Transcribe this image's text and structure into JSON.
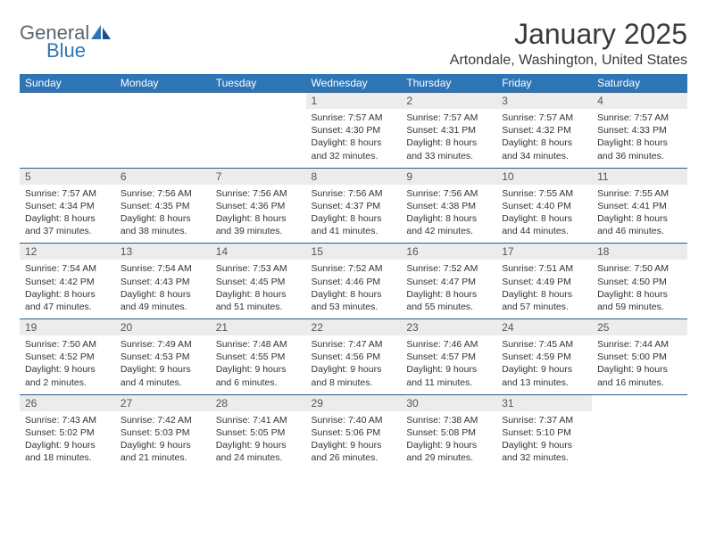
{
  "brand": {
    "name_top": "General",
    "name_bottom": "Blue"
  },
  "title": "January 2025",
  "location": "Artondale, Washington, United States",
  "colors": {
    "header_bg": "#2e75b6",
    "header_fg": "#ffffff",
    "daynum_bg": "#ececec",
    "border": "#2e5b8a",
    "text": "#333333",
    "logo_gray": "#5a6570",
    "logo_blue": "#2e75b6"
  },
  "fonts": {
    "title_size": 32,
    "location_size": 16,
    "dayhead_size": 12,
    "cell_size": 10.5
  },
  "day_headers": [
    "Sunday",
    "Monday",
    "Tuesday",
    "Wednesday",
    "Thursday",
    "Friday",
    "Saturday"
  ],
  "weeks": [
    [
      null,
      null,
      null,
      {
        "n": "1",
        "sr": "7:57 AM",
        "ss": "4:30 PM",
        "dh": "8",
        "dm": "32"
      },
      {
        "n": "2",
        "sr": "7:57 AM",
        "ss": "4:31 PM",
        "dh": "8",
        "dm": "33"
      },
      {
        "n": "3",
        "sr": "7:57 AM",
        "ss": "4:32 PM",
        "dh": "8",
        "dm": "34"
      },
      {
        "n": "4",
        "sr": "7:57 AM",
        "ss": "4:33 PM",
        "dh": "8",
        "dm": "36"
      }
    ],
    [
      {
        "n": "5",
        "sr": "7:57 AM",
        "ss": "4:34 PM",
        "dh": "8",
        "dm": "37"
      },
      {
        "n": "6",
        "sr": "7:56 AM",
        "ss": "4:35 PM",
        "dh": "8",
        "dm": "38"
      },
      {
        "n": "7",
        "sr": "7:56 AM",
        "ss": "4:36 PM",
        "dh": "8",
        "dm": "39"
      },
      {
        "n": "8",
        "sr": "7:56 AM",
        "ss": "4:37 PM",
        "dh": "8",
        "dm": "41"
      },
      {
        "n": "9",
        "sr": "7:56 AM",
        "ss": "4:38 PM",
        "dh": "8",
        "dm": "42"
      },
      {
        "n": "10",
        "sr": "7:55 AM",
        "ss": "4:40 PM",
        "dh": "8",
        "dm": "44"
      },
      {
        "n": "11",
        "sr": "7:55 AM",
        "ss": "4:41 PM",
        "dh": "8",
        "dm": "46"
      }
    ],
    [
      {
        "n": "12",
        "sr": "7:54 AM",
        "ss": "4:42 PM",
        "dh": "8",
        "dm": "47"
      },
      {
        "n": "13",
        "sr": "7:54 AM",
        "ss": "4:43 PM",
        "dh": "8",
        "dm": "49"
      },
      {
        "n": "14",
        "sr": "7:53 AM",
        "ss": "4:45 PM",
        "dh": "8",
        "dm": "51"
      },
      {
        "n": "15",
        "sr": "7:52 AM",
        "ss": "4:46 PM",
        "dh": "8",
        "dm": "53"
      },
      {
        "n": "16",
        "sr": "7:52 AM",
        "ss": "4:47 PM",
        "dh": "8",
        "dm": "55"
      },
      {
        "n": "17",
        "sr": "7:51 AM",
        "ss": "4:49 PM",
        "dh": "8",
        "dm": "57"
      },
      {
        "n": "18",
        "sr": "7:50 AM",
        "ss": "4:50 PM",
        "dh": "8",
        "dm": "59"
      }
    ],
    [
      {
        "n": "19",
        "sr": "7:50 AM",
        "ss": "4:52 PM",
        "dh": "9",
        "dm": "2"
      },
      {
        "n": "20",
        "sr": "7:49 AM",
        "ss": "4:53 PM",
        "dh": "9",
        "dm": "4"
      },
      {
        "n": "21",
        "sr": "7:48 AM",
        "ss": "4:55 PM",
        "dh": "9",
        "dm": "6"
      },
      {
        "n": "22",
        "sr": "7:47 AM",
        "ss": "4:56 PM",
        "dh": "9",
        "dm": "8"
      },
      {
        "n": "23",
        "sr": "7:46 AM",
        "ss": "4:57 PM",
        "dh": "9",
        "dm": "11"
      },
      {
        "n": "24",
        "sr": "7:45 AM",
        "ss": "4:59 PM",
        "dh": "9",
        "dm": "13"
      },
      {
        "n": "25",
        "sr": "7:44 AM",
        "ss": "5:00 PM",
        "dh": "9",
        "dm": "16"
      }
    ],
    [
      {
        "n": "26",
        "sr": "7:43 AM",
        "ss": "5:02 PM",
        "dh": "9",
        "dm": "18"
      },
      {
        "n": "27",
        "sr": "7:42 AM",
        "ss": "5:03 PM",
        "dh": "9",
        "dm": "21"
      },
      {
        "n": "28",
        "sr": "7:41 AM",
        "ss": "5:05 PM",
        "dh": "9",
        "dm": "24"
      },
      {
        "n": "29",
        "sr": "7:40 AM",
        "ss": "5:06 PM",
        "dh": "9",
        "dm": "26"
      },
      {
        "n": "30",
        "sr": "7:38 AM",
        "ss": "5:08 PM",
        "dh": "9",
        "dm": "29"
      },
      {
        "n": "31",
        "sr": "7:37 AM",
        "ss": "5:10 PM",
        "dh": "9",
        "dm": "32"
      },
      null
    ]
  ],
  "labels": {
    "sunrise": "Sunrise:",
    "sunset": "Sunset:",
    "daylight": "Daylight:",
    "hours": "hours",
    "and": "and",
    "minutes": "minutes."
  }
}
